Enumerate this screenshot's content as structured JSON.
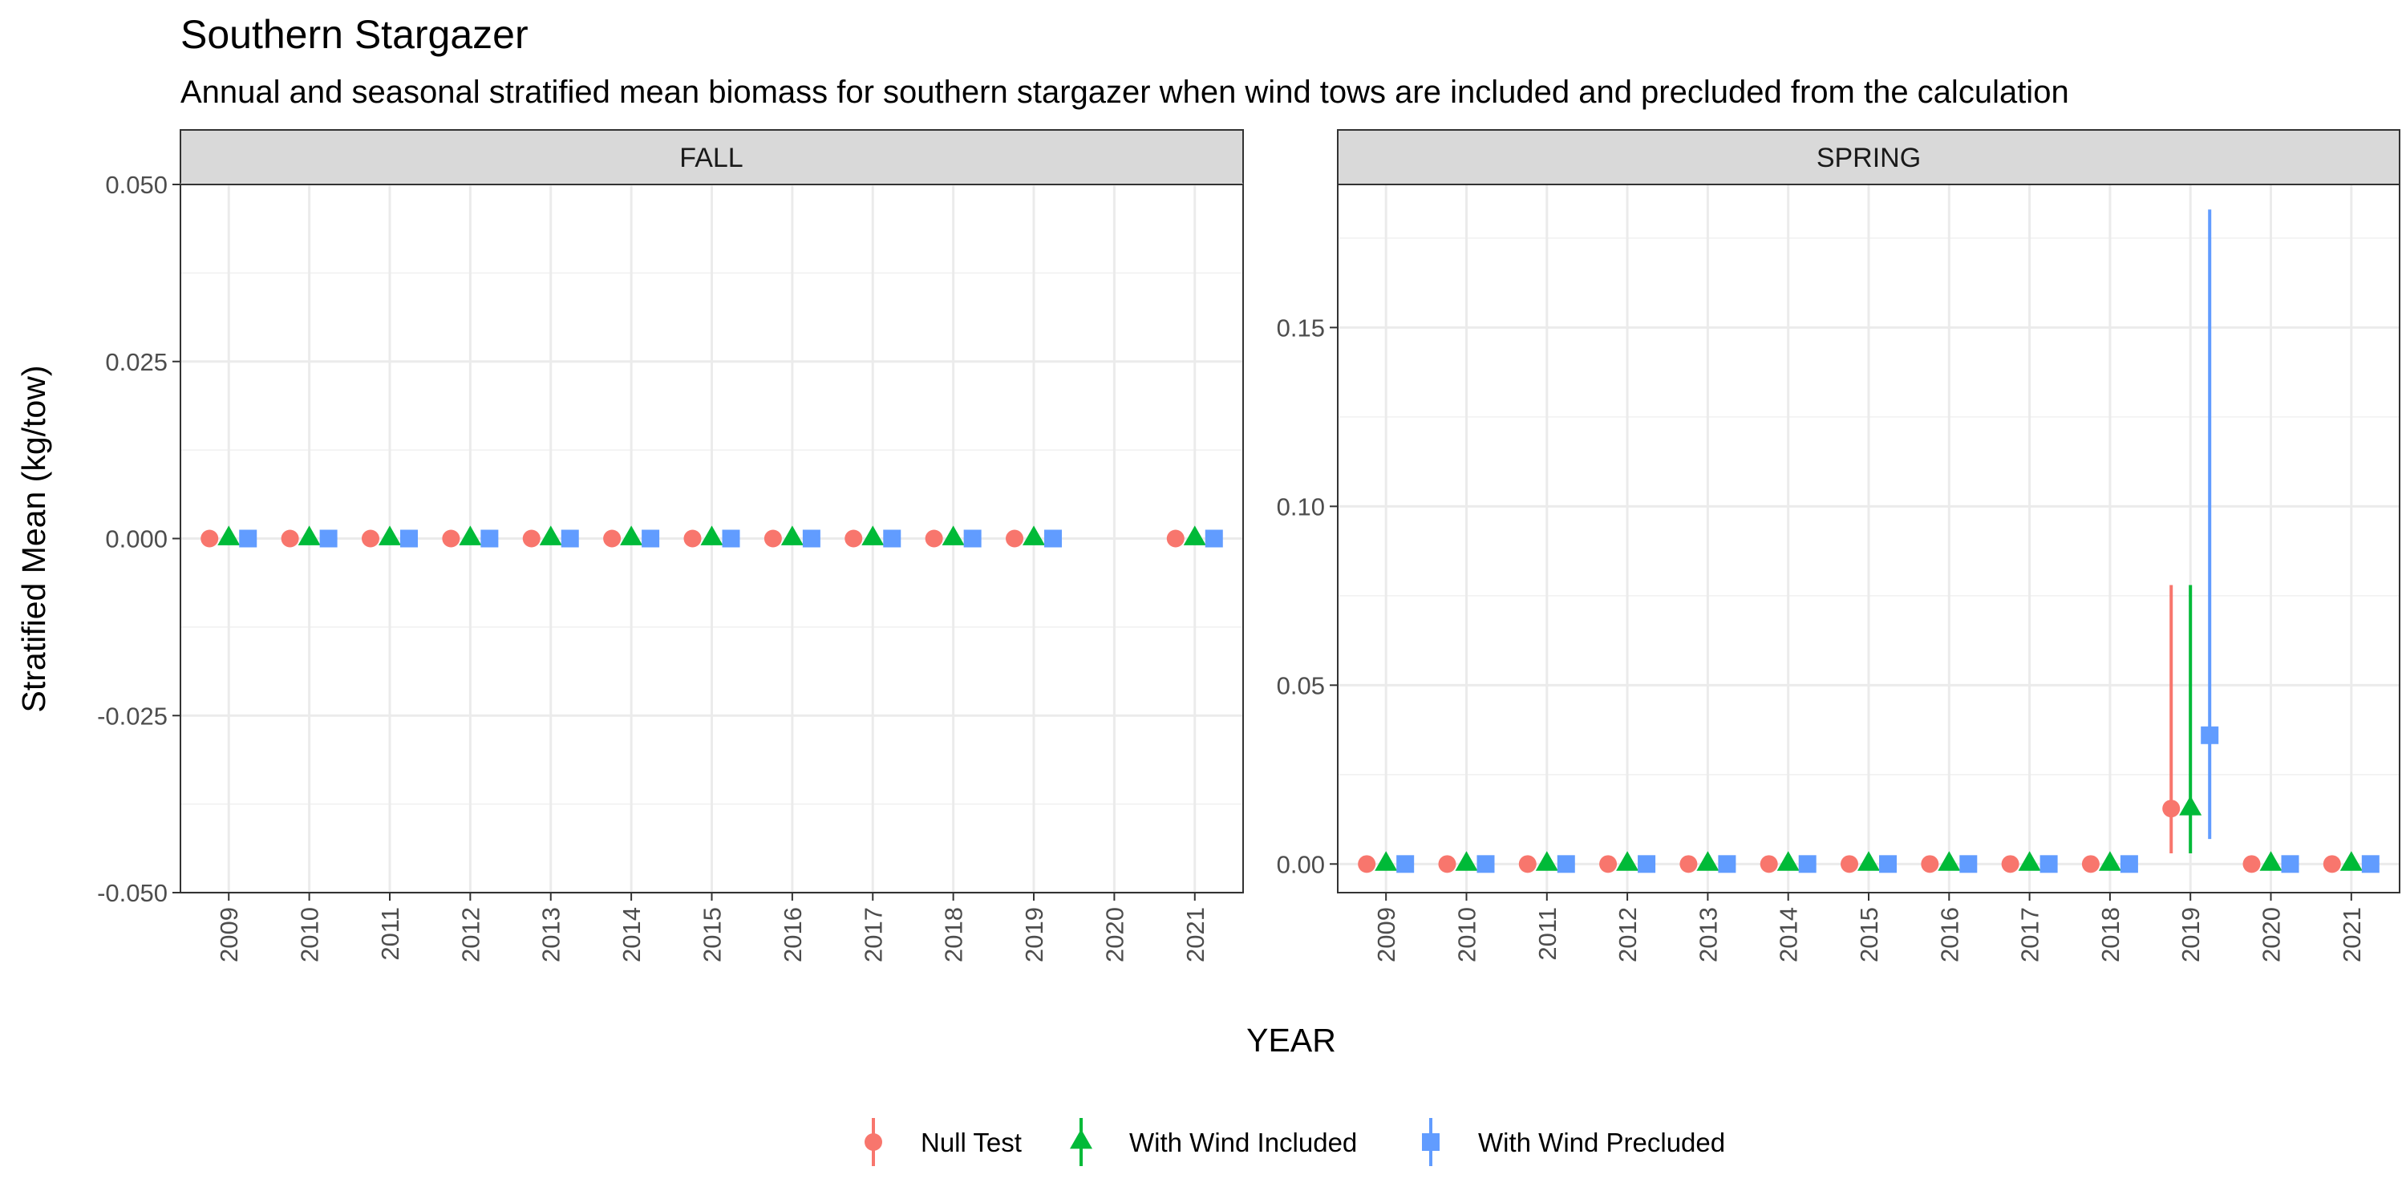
{
  "chart_data": {
    "type": "scatter",
    "title": "Southern Stargazer",
    "subtitle": "Annual and seasonal stratified mean biomass for southern stargazer when wind tows are included and precluded from the calculation",
    "xlabel": "YEAR",
    "ylabel": "Stratified Mean (kg/tow)",
    "categories": [
      "2009",
      "2010",
      "2011",
      "2012",
      "2013",
      "2014",
      "2015",
      "2016",
      "2017",
      "2018",
      "2019",
      "2020",
      "2021"
    ],
    "legend": {
      "placement": "bottom",
      "entries": [
        {
          "name": "Null Test",
          "color": "#F8766D",
          "shape": "circle"
        },
        {
          "name": "With Wind Included",
          "color": "#00BA38",
          "shape": "triangle"
        },
        {
          "name": "With Wind Precluded",
          "color": "#619CFF",
          "shape": "square"
        }
      ]
    },
    "grid": true,
    "panels": [
      {
        "name": "FALL",
        "ylim": [
          -0.05,
          0.05
        ],
        "yticks": [
          -0.05,
          -0.025,
          0,
          0.025,
          0.05
        ],
        "ytick_labels": [
          "-0.050",
          "-0.025",
          "0.000",
          "0.025",
          "0.050"
        ],
        "series": [
          {
            "name": "Null Test",
            "points": [
              {
                "x": "2009",
                "y": 0
              },
              {
                "x": "2010",
                "y": 0
              },
              {
                "x": "2011",
                "y": 0
              },
              {
                "x": "2012",
                "y": 0
              },
              {
                "x": "2013",
                "y": 0
              },
              {
                "x": "2014",
                "y": 0
              },
              {
                "x": "2015",
                "y": 0
              },
              {
                "x": "2016",
                "y": 0
              },
              {
                "x": "2017",
                "y": 0
              },
              {
                "x": "2018",
                "y": 0
              },
              {
                "x": "2019",
                "y": 0
              },
              {
                "x": "2021",
                "y": 0
              }
            ]
          },
          {
            "name": "With Wind Included",
            "points": [
              {
                "x": "2009",
                "y": 0
              },
              {
                "x": "2010",
                "y": 0
              },
              {
                "x": "2011",
                "y": 0
              },
              {
                "x": "2012",
                "y": 0
              },
              {
                "x": "2013",
                "y": 0
              },
              {
                "x": "2014",
                "y": 0
              },
              {
                "x": "2015",
                "y": 0
              },
              {
                "x": "2016",
                "y": 0
              },
              {
                "x": "2017",
                "y": 0
              },
              {
                "x": "2018",
                "y": 0
              },
              {
                "x": "2019",
                "y": 0
              },
              {
                "x": "2021",
                "y": 0
              }
            ]
          },
          {
            "name": "With Wind Precluded",
            "points": [
              {
                "x": "2009",
                "y": 0
              },
              {
                "x": "2010",
                "y": 0
              },
              {
                "x": "2011",
                "y": 0
              },
              {
                "x": "2012",
                "y": 0
              },
              {
                "x": "2013",
                "y": 0
              },
              {
                "x": "2014",
                "y": 0
              },
              {
                "x": "2015",
                "y": 0
              },
              {
                "x": "2016",
                "y": 0
              },
              {
                "x": "2017",
                "y": 0
              },
              {
                "x": "2018",
                "y": 0
              },
              {
                "x": "2019",
                "y": 0
              },
              {
                "x": "2021",
                "y": 0
              }
            ]
          }
        ]
      },
      {
        "name": "SPRING",
        "ylim": [
          -0.008,
          0.19
        ],
        "yticks": [
          0,
          0.05,
          0.1,
          0.15
        ],
        "ytick_labels": [
          "0.00",
          "0.05",
          "0.10",
          "0.15"
        ],
        "series": [
          {
            "name": "Null Test",
            "points": [
              {
                "x": "2009",
                "y": 0
              },
              {
                "x": "2010",
                "y": 0
              },
              {
                "x": "2011",
                "y": 0
              },
              {
                "x": "2012",
                "y": 0
              },
              {
                "x": "2013",
                "y": 0
              },
              {
                "x": "2014",
                "y": 0
              },
              {
                "x": "2015",
                "y": 0
              },
              {
                "x": "2016",
                "y": 0
              },
              {
                "x": "2017",
                "y": 0
              },
              {
                "x": "2018",
                "y": 0
              },
              {
                "x": "2019",
                "y": 0.0155,
                "ymin": 0.003,
                "ymax": 0.078
              },
              {
                "x": "2020",
                "y": 0
              },
              {
                "x": "2021",
                "y": 0
              }
            ]
          },
          {
            "name": "With Wind Included",
            "points": [
              {
                "x": "2009",
                "y": 0
              },
              {
                "x": "2010",
                "y": 0
              },
              {
                "x": "2011",
                "y": 0
              },
              {
                "x": "2012",
                "y": 0
              },
              {
                "x": "2013",
                "y": 0
              },
              {
                "x": "2014",
                "y": 0
              },
              {
                "x": "2015",
                "y": 0
              },
              {
                "x": "2016",
                "y": 0
              },
              {
                "x": "2017",
                "y": 0
              },
              {
                "x": "2018",
                "y": 0
              },
              {
                "x": "2019",
                "y": 0.0155,
                "ymin": 0.003,
                "ymax": 0.078
              },
              {
                "x": "2020",
                "y": 0
              },
              {
                "x": "2021",
                "y": 0
              }
            ]
          },
          {
            "name": "With Wind Precluded",
            "points": [
              {
                "x": "2009",
                "y": 0
              },
              {
                "x": "2010",
                "y": 0
              },
              {
                "x": "2011",
                "y": 0
              },
              {
                "x": "2012",
                "y": 0
              },
              {
                "x": "2013",
                "y": 0
              },
              {
                "x": "2014",
                "y": 0
              },
              {
                "x": "2015",
                "y": 0
              },
              {
                "x": "2016",
                "y": 0
              },
              {
                "x": "2017",
                "y": 0
              },
              {
                "x": "2018",
                "y": 0
              },
              {
                "x": "2019",
                "y": 0.036,
                "ymin": 0.007,
                "ymax": 0.183
              },
              {
                "x": "2020",
                "y": 0
              },
              {
                "x": "2021",
                "y": 0
              }
            ]
          }
        ]
      }
    ]
  }
}
